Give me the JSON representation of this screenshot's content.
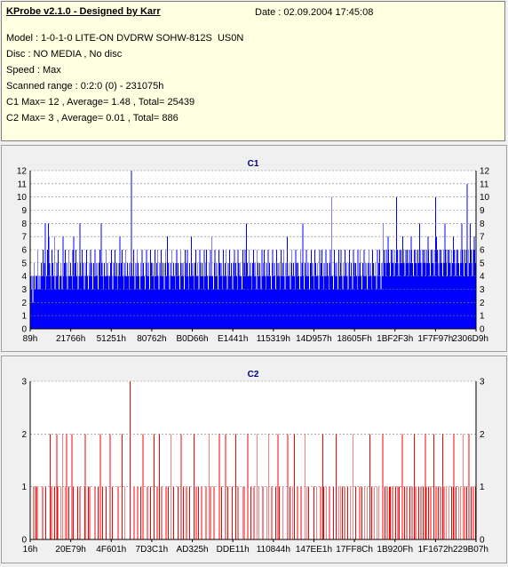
{
  "info": {
    "title": "KProbe v2.1.0 - Designed by Karr",
    "date": "Date : 02.09.2004 17:45:08",
    "lines": [
      "Model : 1-0-1-0 LITE-ON DVDRW SOHW-812S  US0N",
      "Disc : NO MEDIA , No disc",
      "Speed : Max",
      "Scanned range : 0:2:0 (0) - 231075h",
      "C1 Max= 12 , Average= 1.48 , Total= 25439",
      "C2 Max= 3 , Average= 0.01 , Total= 886"
    ]
  },
  "colors": {
    "c1": "#0000ff",
    "c2": "#ff0000",
    "grid": "#808080",
    "title": "#000080"
  },
  "chart_data": [
    {
      "type": "bar",
      "title": "C1",
      "xlabel": "",
      "ylabel": "",
      "ylim": [
        0,
        12
      ],
      "yticks": [
        0,
        1,
        2,
        3,
        4,
        5,
        6,
        7,
        8,
        9,
        10,
        11,
        12
      ],
      "xtick_labels": [
        "89h",
        "21766h",
        "51251h",
        "80762h",
        "B0D66h",
        "E1441h",
        "115319h",
        "14D957h",
        "18605Fh",
        "1BF2F3h",
        "1F7F97h",
        "2306D9h"
      ],
      "grid": true,
      "color": "#0000ff",
      "values": [
        4,
        3,
        4,
        2,
        4,
        5,
        3,
        4,
        4,
        6,
        3,
        4,
        3,
        4,
        5,
        4,
        6,
        4,
        5,
        8,
        3,
        4,
        6,
        8,
        7,
        5,
        4,
        3,
        6,
        5,
        4,
        7,
        3,
        4,
        5,
        4,
        6,
        3,
        4,
        5,
        4,
        3,
        7,
        4,
        5,
        6,
        4,
        5,
        3,
        4,
        6,
        4,
        5,
        4,
        3,
        6,
        7,
        4,
        5,
        6,
        4,
        5,
        3,
        4,
        8,
        5,
        4,
        6,
        4,
        5,
        3,
        4,
        5,
        6,
        4,
        3,
        5,
        4,
        6,
        5,
        4,
        3,
        5,
        4,
        6,
        4,
        5,
        4,
        3,
        5,
        6,
        4,
        8,
        5,
        4,
        3,
        5,
        4,
        6,
        4,
        5,
        4,
        3,
        4,
        5,
        6,
        4,
        3,
        5,
        4,
        6,
        4,
        5,
        3,
        4,
        5,
        7,
        4,
        5,
        6,
        4,
        3,
        5,
        4,
        6,
        4,
        5,
        4,
        3,
        5,
        4,
        12,
        5,
        4,
        6,
        4,
        3,
        5,
        4,
        6,
        5,
        4,
        3,
        5,
        4,
        6,
        4,
        5,
        4,
        3,
        5,
        6,
        4,
        5,
        4,
        3,
        6,
        5,
        4,
        5,
        4,
        3,
        6,
        4,
        5,
        6,
        4,
        3,
        5,
        4,
        6,
        4,
        5,
        4,
        3,
        5,
        6,
        4,
        7,
        5,
        4,
        3,
        5,
        4,
        6,
        4,
        5,
        4,
        3,
        5,
        6,
        4,
        5,
        4,
        3,
        6,
        5,
        4,
        5,
        4,
        3,
        6,
        4,
        5,
        6,
        4,
        3,
        5,
        4,
        7,
        4,
        5,
        4,
        3,
        5,
        6,
        4,
        5,
        4,
        3,
        6,
        5,
        4,
        5,
        4,
        3,
        6,
        4,
        5,
        6,
        4,
        3,
        5,
        4,
        6,
        4,
        7,
        4,
        3,
        5,
        6,
        4,
        5,
        4,
        3,
        6,
        5,
        4,
        5,
        4,
        3,
        6,
        4,
        5,
        6,
        4,
        3,
        5,
        4,
        6,
        4,
        5,
        4,
        3,
        5,
        6,
        4,
        5,
        4,
        3,
        6,
        5,
        4,
        5,
        4,
        3,
        6,
        4,
        5,
        6,
        4,
        8,
        5,
        4,
        6,
        4,
        5,
        4,
        3,
        5,
        6,
        4,
        5,
        4,
        3,
        6,
        5,
        4,
        5,
        4,
        3,
        6,
        4,
        5,
        6,
        4,
        3,
        5,
        4,
        6,
        4,
        5,
        4,
        3,
        5,
        6,
        4,
        5,
        4,
        3,
        6,
        5,
        4,
        5,
        4,
        3,
        6,
        4,
        5,
        6,
        4,
        3,
        5,
        4,
        7,
        4,
        5,
        4,
        3,
        5,
        6,
        4,
        5,
        4,
        3,
        6,
        5,
        4,
        5,
        4,
        3,
        6,
        4,
        5,
        8,
        4,
        3,
        5,
        4,
        6,
        4,
        5,
        4,
        3,
        5,
        6,
        4,
        5,
        4,
        3,
        6,
        5,
        4,
        5,
        4,
        3,
        6,
        4,
        5,
        6,
        4,
        3,
        5,
        4,
        6,
        4,
        5,
        4,
        3,
        5,
        6,
        4,
        10,
        4,
        3,
        6,
        5,
        4,
        5,
        4,
        3,
        6,
        4,
        5,
        6,
        4,
        3,
        5,
        4,
        6,
        4,
        5,
        4,
        3,
        5,
        6,
        4,
        5,
        4,
        3,
        6,
        5,
        4,
        5,
        4,
        3,
        6,
        4,
        5,
        6,
        4,
        3,
        5,
        4,
        6,
        4,
        5,
        4,
        3,
        5,
        6,
        4,
        5,
        4,
        3,
        6,
        5,
        4,
        5,
        4,
        3,
        6,
        4,
        5,
        6,
        4,
        3,
        5,
        4,
        8,
        6,
        5,
        4,
        6,
        5,
        7,
        6,
        5,
        4,
        6,
        5,
        6,
        5,
        4,
        6,
        5,
        10,
        6,
        5,
        4,
        6,
        5,
        6,
        5,
        7,
        6,
        5,
        4,
        6,
        5,
        6,
        5,
        4,
        6,
        5,
        7,
        6,
        5,
        4,
        6,
        5,
        6,
        5,
        4,
        6,
        5,
        8,
        6,
        5,
        4,
        6,
        5,
        6,
        5,
        4,
        6,
        5,
        7,
        6,
        5,
        4,
        6,
        5,
        6,
        5,
        4,
        6,
        10,
        7,
        6,
        5,
        4,
        6,
        5,
        6,
        5,
        4,
        6,
        5,
        8,
        6,
        5,
        4,
        6,
        5,
        6,
        5,
        4,
        6,
        5,
        7,
        6,
        5,
        4,
        6,
        5,
        6,
        5,
        4,
        6,
        5,
        8,
        6,
        5,
        4,
        6,
        5,
        6,
        11,
        4,
        6,
        5,
        8,
        6,
        5,
        4,
        6,
        7,
        6,
        5
      ]
    },
    {
      "type": "bar",
      "title": "C2",
      "xlabel": "",
      "ylabel": "",
      "ylim": [
        0,
        3
      ],
      "yticks": [
        0,
        1,
        2,
        3
      ],
      "xtick_labels": [
        "16h",
        "20E79h",
        "4F601h",
        "7D3C1h",
        "AD325h",
        "DDE11h",
        "110844h",
        "147EE1h",
        "17FF8Ch",
        "1B920Fh",
        "1F1672h",
        "229B07h"
      ],
      "grid": true,
      "color": "#ff0000",
      "values": [
        0,
        0,
        0,
        0,
        1,
        0,
        0,
        1,
        0,
        1,
        0,
        0,
        0,
        0,
        0,
        0,
        1,
        0,
        0,
        0,
        1,
        0,
        0,
        0,
        0,
        0,
        2,
        0,
        1,
        0,
        0,
        0,
        1,
        0,
        0,
        2,
        1,
        0,
        0,
        0,
        1,
        0,
        0,
        2,
        0,
        0,
        1,
        0,
        2,
        0,
        0,
        1,
        0,
        0,
        0,
        2,
        0,
        1,
        0,
        0,
        0,
        0,
        0,
        1,
        0,
        0,
        1,
        0,
        0,
        0,
        0,
        0,
        1,
        2,
        0,
        0,
        0,
        1,
        0,
        1,
        0,
        0,
        0,
        0,
        0,
        0,
        1,
        0,
        0,
        0,
        1,
        0,
        0,
        2,
        0,
        0,
        1,
        0,
        0,
        0,
        0,
        1,
        0,
        0,
        0,
        0,
        2,
        0,
        0,
        1,
        0,
        0,
        0,
        0,
        0,
        0,
        0,
        1,
        0,
        0,
        0,
        0,
        2,
        0,
        0,
        0,
        1,
        0,
        0,
        0,
        0,
        0,
        0,
        3,
        0,
        0,
        0,
        0,
        1,
        0,
        0,
        0,
        0,
        1,
        0,
        0,
        0,
        1,
        0,
        0,
        2,
        0,
        0,
        0,
        0,
        0,
        1,
        0,
        0,
        0,
        1,
        0,
        0,
        0,
        0,
        2,
        0,
        0,
        0,
        1,
        0,
        0,
        2,
        0,
        0,
        1,
        0,
        0,
        0,
        0,
        0,
        1,
        0,
        0,
        1,
        0,
        0,
        2,
        0,
        0,
        0,
        1,
        0,
        0,
        0,
        0,
        0,
        1,
        0,
        0,
        0,
        2,
        0,
        0,
        1,
        0,
        0,
        0,
        1,
        0,
        0,
        0,
        1,
        0,
        0,
        0,
        0,
        0,
        2,
        0,
        0,
        1,
        0,
        0,
        1,
        0,
        0,
        0,
        1,
        0,
        0,
        0,
        0,
        0,
        1,
        0,
        0,
        0,
        2,
        0,
        1,
        0,
        0,
        0,
        0,
        1,
        0,
        0,
        0,
        0,
        0,
        0,
        2,
        0,
        0,
        1,
        0,
        0,
        0,
        0,
        2,
        0,
        0,
        1,
        0,
        0,
        0,
        0,
        0,
        1,
        0,
        0,
        0,
        0,
        2,
        0,
        0,
        1,
        0,
        0,
        0,
        0,
        0,
        1,
        0,
        1,
        0,
        0,
        0,
        0,
        2,
        0,
        0,
        0,
        1,
        0,
        0,
        0,
        1,
        0,
        0,
        0,
        2,
        0,
        0,
        1,
        0,
        0,
        0,
        0,
        1,
        0,
        0,
        0,
        0,
        1,
        0,
        0,
        2,
        0,
        0,
        0,
        1,
        0,
        0,
        0,
        0,
        1,
        0,
        0,
        2,
        0,
        1,
        0,
        0,
        0,
        0,
        1,
        0,
        0,
        0,
        0,
        0,
        2,
        0,
        0,
        1,
        0,
        0,
        0,
        1,
        0,
        2,
        0,
        0,
        0,
        1,
        0,
        0,
        0,
        0,
        1,
        0,
        0,
        0,
        0,
        2,
        0,
        0,
        1,
        0,
        1,
        0,
        0,
        0,
        0,
        0,
        0,
        1,
        0,
        0,
        0,
        1,
        0,
        0,
        0,
        0,
        1,
        0,
        0,
        2,
        1,
        0,
        0,
        0,
        1,
        0,
        0,
        0,
        1,
        0,
        0,
        0,
        0,
        1,
        0,
        0,
        0,
        2,
        0,
        0,
        1,
        0,
        0,
        1,
        0,
        1,
        0,
        0,
        1,
        0,
        0,
        0,
        1,
        0,
        0,
        0,
        1,
        0,
        0,
        2,
        0,
        0,
        0,
        1,
        0,
        0,
        0,
        0,
        1,
        0,
        0,
        1,
        0,
        0,
        0,
        1,
        0,
        0,
        1,
        0,
        0,
        0,
        2,
        0,
        1,
        0,
        0,
        0,
        1,
        0,
        0,
        1,
        0,
        0,
        1,
        0,
        0,
        0,
        0,
        2,
        0,
        0,
        1,
        0,
        0,
        1,
        0,
        0,
        1,
        1,
        0,
        0,
        1,
        0,
        0,
        0,
        1,
        0,
        0,
        1,
        0,
        1,
        0,
        0,
        0,
        2,
        0,
        0,
        1,
        0,
        0,
        1,
        0,
        0,
        0,
        1,
        0,
        0,
        1,
        0,
        0,
        2,
        0,
        1,
        0,
        0,
        0,
        1,
        0,
        0,
        1,
        0,
        0,
        1,
        0,
        0,
        2,
        1,
        0,
        0,
        1,
        0,
        0,
        1,
        0,
        0,
        0,
        2,
        0,
        0,
        1,
        0,
        0,
        1,
        0,
        0,
        1,
        0,
        0,
        2,
        0,
        1,
        0,
        0,
        1,
        0,
        0,
        1,
        0,
        0,
        0,
        1,
        0,
        1,
        2,
        0,
        0,
        1,
        0,
        0,
        1,
        0,
        0,
        1,
        0,
        0,
        2,
        0,
        1,
        0,
        0,
        1,
        0,
        0,
        2,
        0,
        0,
        1,
        0,
        0,
        1,
        0,
        0,
        1
      ]
    }
  ]
}
